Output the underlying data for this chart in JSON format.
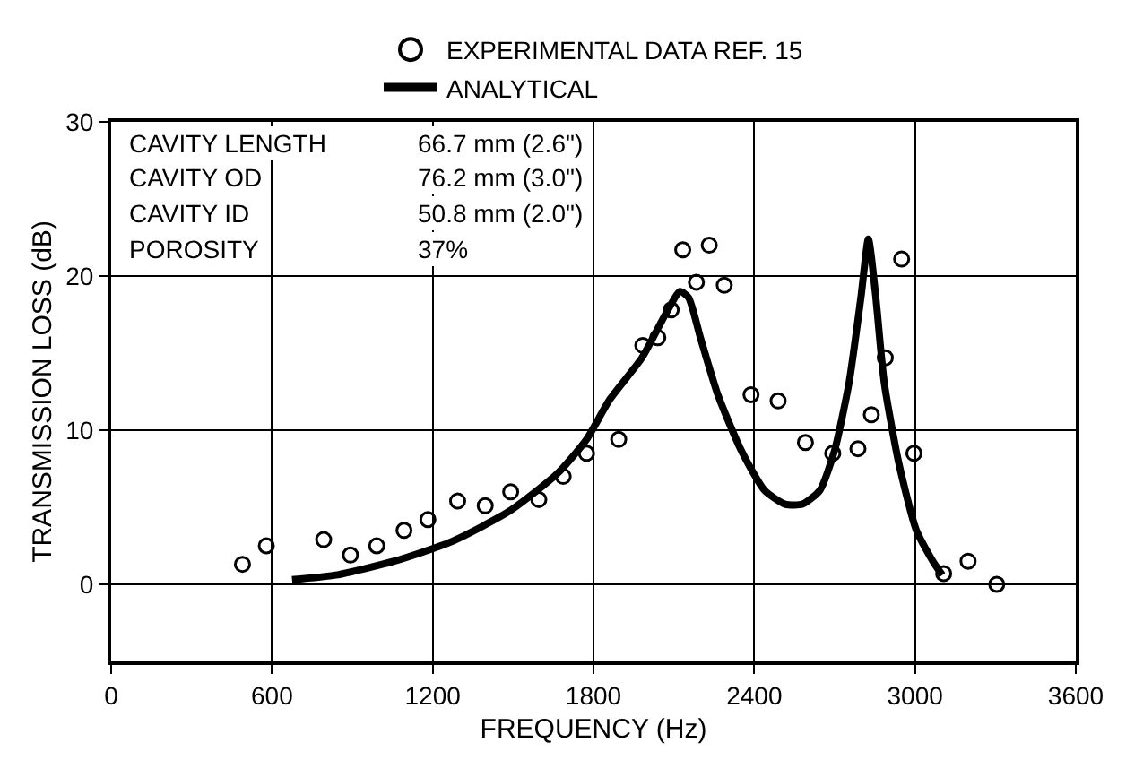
{
  "chart_data": {
    "type": "scatter",
    "xlabel": "FREQUENCY (Hz)",
    "ylabel": "TRANSMISSION LOSS (dB)",
    "xlim": [
      0,
      3600
    ],
    "xticks": [
      0,
      600,
      1200,
      1800,
      2400,
      3000,
      3600
    ],
    "ylim": [
      -5,
      30
    ],
    "yticks": [
      0,
      10,
      20,
      30
    ],
    "grid": true,
    "legend": "top",
    "annotations": [
      "CAVITY LENGTH",
      "66.7 mm (2.6\")",
      "CAVITY OD",
      "76.2 mm (3.0\")",
      "CAVITY ID",
      "50.8 mm (2.0\")",
      "POROSITY",
      "37%"
    ],
    "series": [
      {
        "name": "EXPERIMENTAL DATA REF. 15",
        "marker": "circle",
        "color": "#000000",
        "x": [
          490,
          579,
          793,
          893,
          991,
          1093,
          1182,
          1293,
          1396,
          1491,
          1596,
          1687,
          1774,
          1894,
          1984,
          2040,
          2090,
          2133,
          2184,
          2232,
          2288,
          2388,
          2489,
          2591,
          2693,
          2787,
          2837,
          2889,
          2950,
          2996,
          3107,
          3198,
          3305
        ],
        "values": [
          1.3,
          2.5,
          2.9,
          1.9,
          2.5,
          3.5,
          4.2,
          5.4,
          5.1,
          6.0,
          5.5,
          7.0,
          8.5,
          9.4,
          15.5,
          16.0,
          17.8,
          21.7,
          19.6,
          22.0,
          19.4,
          12.3,
          11.9,
          9.2,
          8.5,
          8.8,
          11.0,
          14.7,
          21.1,
          8.5,
          0.7,
          1.5,
          0.0
        ]
      },
      {
        "name": "ANALYTICAL",
        "type": "line",
        "marker": "none",
        "line_style": "solid",
        "color": "#000000",
        "x": [
          675,
          838,
          1056,
          1274,
          1491,
          1666,
          1774,
          1861,
          1981,
          2068,
          2123,
          2155,
          2199,
          2264,
          2351,
          2438,
          2515,
          2580,
          2645,
          2700,
          2754,
          2798,
          2826,
          2852,
          2885,
          2939,
          3005,
          3070,
          3102
        ],
        "values": [
          0.3,
          0.6,
          1.5,
          2.8,
          4.8,
          7.2,
          9.4,
          12.0,
          14.7,
          17.5,
          19.0,
          18.6,
          16.0,
          12.3,
          8.7,
          6.1,
          5.2,
          5.2,
          6.1,
          8.7,
          13.1,
          18.6,
          22.4,
          18.9,
          13.1,
          7.9,
          3.5,
          1.4,
          0.6
        ]
      }
    ]
  }
}
